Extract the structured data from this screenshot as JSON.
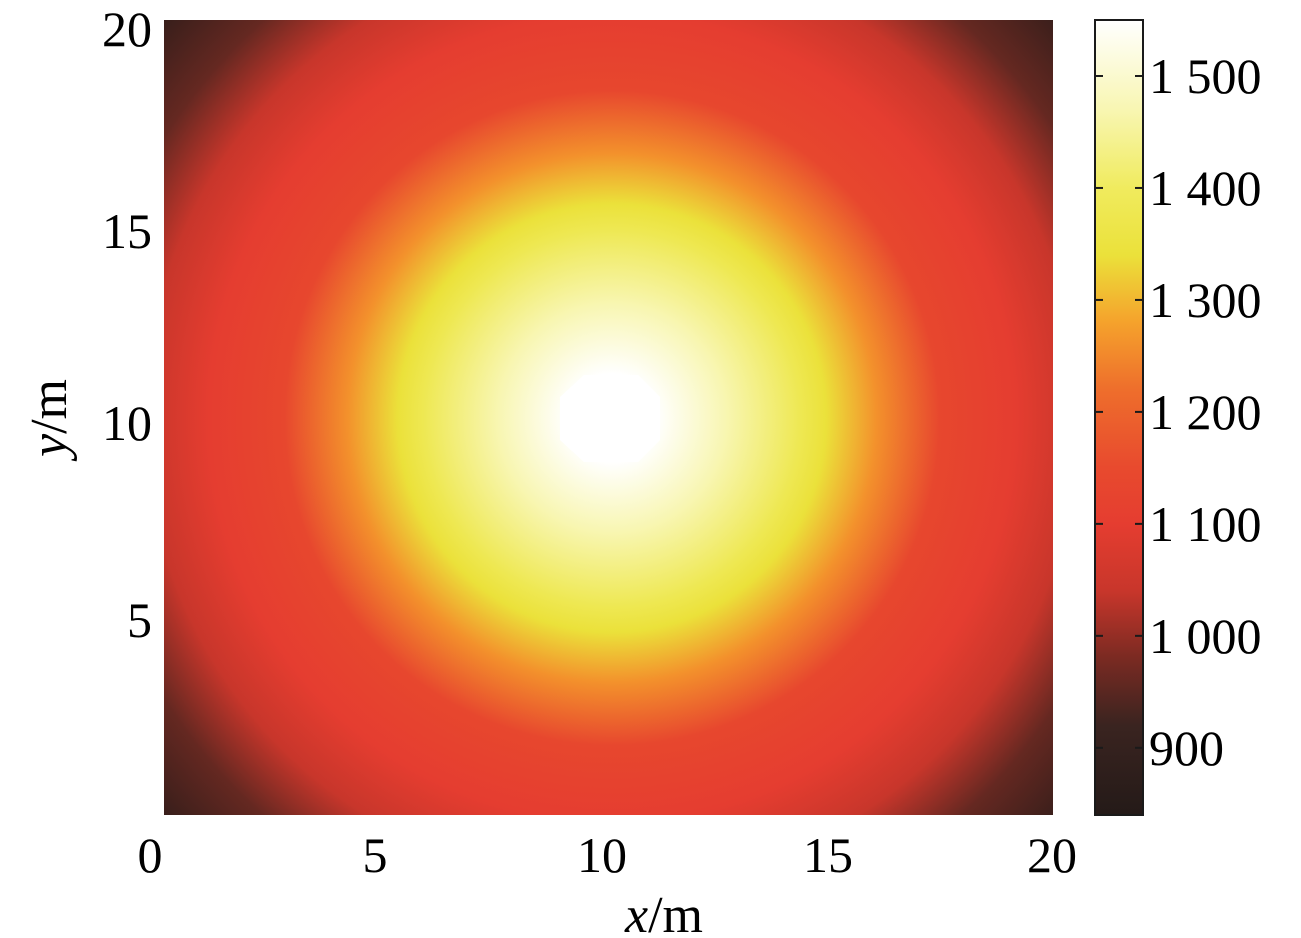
{
  "chart_data": {
    "type": "heatmap",
    "title": "",
    "xlabel": {
      "var": "x",
      "unit": "/m"
    },
    "ylabel": {
      "var": "y",
      "unit": "/m"
    },
    "xlim": [
      0,
      20
    ],
    "ylim": [
      0,
      20
    ],
    "x_ticks": [
      "0",
      "5",
      "10",
      "15",
      "20"
    ],
    "y_ticks": [
      "5",
      "10",
      "15",
      "20"
    ],
    "x_tick_values": [
      0,
      5,
      10,
      15,
      20
    ],
    "y_tick_values": [
      5,
      10,
      15,
      20
    ],
    "field": {
      "description": "radially symmetric temperature-like field peaking at center",
      "center": [
        10.2,
        10
      ],
      "peak_value": 1550,
      "edge_mid_value": 1030,
      "corner_value": 840
    },
    "colorbar": {
      "range": [
        840,
        1550
      ],
      "ticks": [
        "900",
        "1 000",
        "1 100",
        "1 200",
        "1 300",
        "1 400",
        "1 500"
      ],
      "tick_values": [
        900,
        1000,
        1100,
        1200,
        1300,
        1400,
        1500
      ],
      "colormap": [
        {
          "value": 840,
          "color": "#241a18"
        },
        {
          "value": 920,
          "color": "#3a2420"
        },
        {
          "value": 980,
          "color": "#7a2a22"
        },
        {
          "value": 1040,
          "color": "#c8362b"
        },
        {
          "value": 1100,
          "color": "#e53d30"
        },
        {
          "value": 1150,
          "color": "#e84a2e"
        },
        {
          "value": 1220,
          "color": "#ee6e2c"
        },
        {
          "value": 1280,
          "color": "#f5a22c"
        },
        {
          "value": 1340,
          "color": "#ebe13a"
        },
        {
          "value": 1400,
          "color": "#f0eb5e"
        },
        {
          "value": 1470,
          "color": "#f8f6b2"
        },
        {
          "value": 1550,
          "color": "#ffffff"
        }
      ]
    },
    "grid": false
  }
}
